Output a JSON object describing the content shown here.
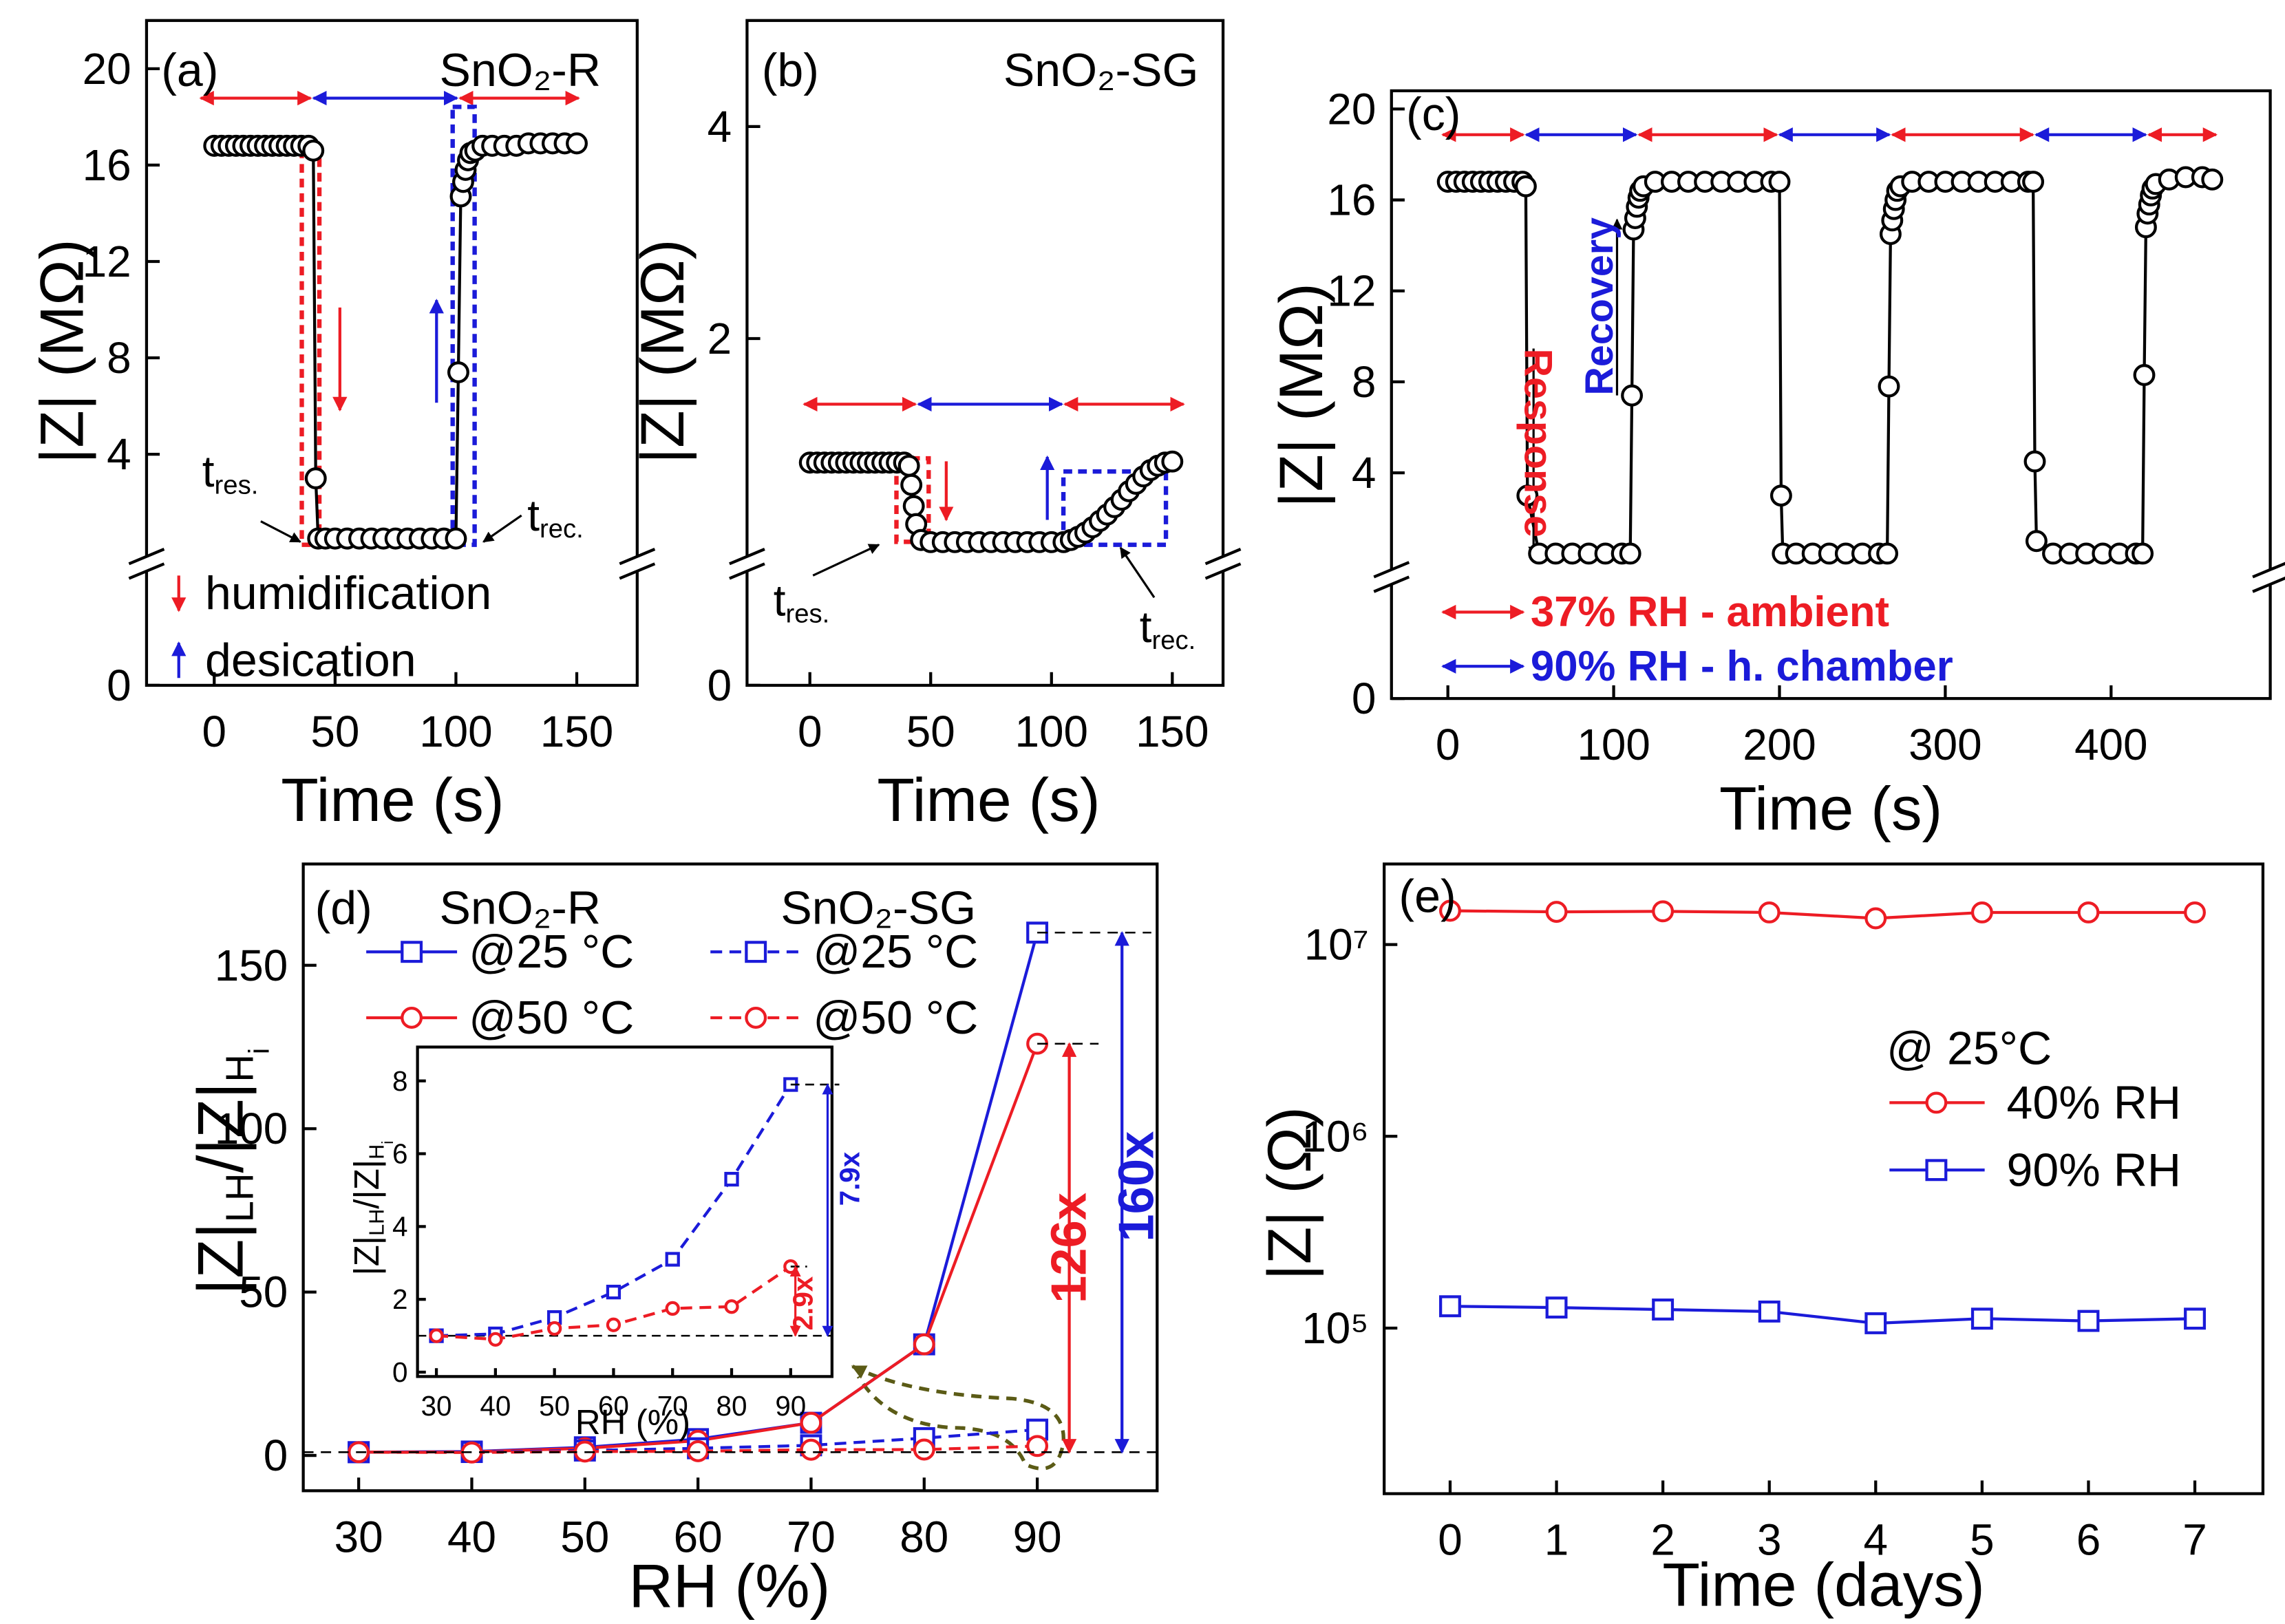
{
  "chart_data": [
    {
      "type": "line",
      "x": [
        0,
        3,
        6,
        9,
        12,
        15,
        18,
        21,
        24,
        27,
        30,
        33,
        36,
        39,
        41,
        42,
        43,
        46,
        50,
        55,
        60,
        65,
        70,
        75,
        80,
        85,
        90,
        95,
        100,
        101,
        102,
        103,
        104,
        105,
        106,
        108,
        111,
        115,
        120,
        125,
        130,
        135,
        140,
        145,
        150
      ],
      "values": [
        16.8,
        16.8,
        16.8,
        16.8,
        16.8,
        16.8,
        16.8,
        16.8,
        16.8,
        16.8,
        16.8,
        16.8,
        16.8,
        16.8,
        16.6,
        3.0,
        0.5,
        0.5,
        0.5,
        0.5,
        0.5,
        0.5,
        0.5,
        0.5,
        0.5,
        0.5,
        0.5,
        0.5,
        0.5,
        7.4,
        14.7,
        15.3,
        15.8,
        16.2,
        16.5,
        16.6,
        16.8,
        16.8,
        16.8,
        16.8,
        16.9,
        16.9,
        16.9,
        16.9,
        16.9
      ],
      "color": "#000000",
      "marker": "circle",
      "xlim": [
        -28,
        175
      ],
      "ylim": [
        0,
        22
      ],
      "axis_break": true,
      "xticks": [
        0,
        50,
        100,
        150
      ],
      "yticks": [
        0,
        4,
        8,
        12,
        16,
        20
      ],
      "xlabel": "Time (s)",
      "ylabel": "|Z| (MΩ)",
      "annotations": [
        "(a)",
        "SnO₂-R",
        {
          "text": "t",
          "sub": "res."
        },
        {
          "text": "t",
          "sub": "rec."
        }
      ],
      "legend": [
        {
          "name": "humidification",
          "color": "#ed1c24"
        },
        {
          "name": "desication",
          "color": "#1b1bd9"
        }
      ]
    },
    {
      "type": "line",
      "x": [
        0,
        3,
        6,
        9,
        12,
        15,
        18,
        21,
        24,
        27,
        30,
        33,
        36,
        39,
        41,
        42,
        43,
        44,
        46,
        50,
        55,
        60,
        65,
        70,
        75,
        80,
        85,
        90,
        95,
        100,
        105,
        108,
        111,
        114,
        117,
        120,
        123,
        126,
        129,
        132,
        135,
        138,
        141,
        144,
        147,
        150
      ],
      "values": [
        0.83,
        0.83,
        0.83,
        0.83,
        0.83,
        0.83,
        0.83,
        0.83,
        0.83,
        0.83,
        0.83,
        0.83,
        0.83,
        0.83,
        0.8,
        0.62,
        0.42,
        0.25,
        0.1,
        0.08,
        0.08,
        0.08,
        0.08,
        0.08,
        0.08,
        0.08,
        0.08,
        0.08,
        0.08,
        0.08,
        0.08,
        0.1,
        0.13,
        0.17,
        0.22,
        0.28,
        0.34,
        0.41,
        0.48,
        0.56,
        0.63,
        0.7,
        0.76,
        0.8,
        0.83,
        0.84
      ],
      "color": "#000000",
      "marker": "circle",
      "xlim": [
        -26,
        171
      ],
      "ylim": [
        0,
        5
      ],
      "axis_break": true,
      "xticks": [
        0,
        50,
        100,
        150
      ],
      "yticks": [
        0,
        2,
        4
      ],
      "xlabel": "Time (s)",
      "ylabel": "|Z| (MΩ)",
      "annotations": [
        "(b)",
        "SnO₂-SG",
        {
          "text": "t",
          "sub": "res."
        },
        {
          "text": "t",
          "sub": "rec."
        }
      ]
    },
    {
      "type": "line",
      "x": [
        0,
        5,
        10,
        15,
        20,
        25,
        30,
        35,
        40,
        45,
        47,
        48,
        55,
        65,
        75,
        85,
        95,
        105,
        110,
        111,
        112,
        113,
        114,
        115,
        116,
        118,
        125,
        135,
        145,
        155,
        165,
        175,
        185,
        195,
        200,
        201,
        202,
        210,
        220,
        230,
        240,
        250,
        260,
        265,
        266,
        267,
        268,
        269,
        270,
        271,
        273,
        280,
        290,
        300,
        310,
        320,
        330,
        340,
        350,
        353,
        354,
        355,
        365,
        375,
        385,
        395,
        405,
        415,
        419,
        420,
        421,
        422,
        423,
        424,
        425,
        427,
        435,
        445,
        455,
        461
      ],
      "values": [
        16.8,
        16.8,
        16.8,
        16.8,
        16.8,
        16.8,
        16.8,
        16.8,
        16.8,
        16.8,
        16.6,
        3.0,
        0.45,
        0.45,
        0.45,
        0.45,
        0.45,
        0.45,
        0.45,
        7.4,
        14.7,
        15.2,
        15.7,
        16.1,
        16.4,
        16.6,
        16.8,
        16.8,
        16.8,
        16.8,
        16.8,
        16.8,
        16.8,
        16.8,
        16.8,
        3.0,
        0.45,
        0.45,
        0.45,
        0.45,
        0.45,
        0.45,
        0.45,
        0.45,
        7.8,
        14.5,
        15.1,
        15.6,
        16.0,
        16.4,
        16.6,
        16.8,
        16.8,
        16.8,
        16.8,
        16.8,
        16.8,
        16.8,
        16.8,
        16.8,
        4.5,
        1.0,
        0.45,
        0.45,
        0.45,
        0.45,
        0.45,
        0.45,
        0.45,
        8.3,
        14.8,
        15.4,
        15.8,
        16.2,
        16.5,
        16.7,
        16.9,
        17.0,
        17.0,
        16.9
      ],
      "color": "#000000",
      "marker": "circle",
      "xlim": [
        -34,
        496
      ],
      "ylim": [
        0,
        20.8
      ],
      "axis_break": true,
      "xticks": [
        0,
        100,
        200,
        300,
        400
      ],
      "yticks": [
        0,
        4,
        8,
        12,
        16,
        20
      ],
      "xlabel": "Time (s)",
      "ylabel": "|Z| (MΩ)",
      "annotations": [
        "(c)",
        {
          "text": "Response",
          "color": "#ed1c24"
        },
        {
          "text": "Recovery",
          "color": "#1b1bd9"
        }
      ],
      "legend": [
        {
          "name": "37% RH - ambient",
          "color": "#ed1c24"
        },
        {
          "name": "90% RH - h. chamber",
          "color": "#1b1bd9"
        }
      ]
    },
    {
      "type": "line",
      "x": [
        30,
        40,
        50,
        60,
        70,
        80,
        90
      ],
      "xlim": [
        25.1,
        100.6
      ],
      "ylim": [
        -10.8,
        181
      ],
      "xticks": [
        30,
        40,
        50,
        60,
        70,
        80,
        90
      ],
      "yticks": [
        0,
        50,
        100,
        150
      ],
      "xlabel": "RH (%)",
      "ylabel": [
        "|Z|",
        "LH",
        "/|Z|",
        "H",
        "i"
      ],
      "legend_columns": [
        "SnO₂-R",
        "SnO₂-SG"
      ],
      "series": [
        {
          "name": "@25 °C",
          "color": "#1b1bd9",
          "marker": "square",
          "dash": false,
          "values": [
            1,
            1.2,
            2.5,
            5,
            10,
            34,
            160
          ]
        },
        {
          "name": "@50 °C",
          "color": "#ed1c24",
          "marker": "circle",
          "dash": false,
          "values": [
            1,
            1.1,
            2.2,
            4.5,
            10,
            34,
            126
          ]
        },
        {
          "name": "@25 °C",
          "color": "#1b1bd9",
          "marker": "square",
          "dash": true,
          "values": [
            1,
            1.05,
            1.5,
            2.2,
            3.1,
            5.3,
            7.9
          ]
        },
        {
          "name": "@50 °C",
          "color": "#ed1c24",
          "marker": "circle",
          "dash": true,
          "values": [
            1,
            0.9,
            1.2,
            1.3,
            1.75,
            1.8,
            2.9
          ]
        }
      ],
      "annotations": [
        "(d)",
        {
          "text": "126x",
          "color": "#ed1c24"
        },
        {
          "text": "160x",
          "color": "#1b1bd9"
        }
      ],
      "inset": {
        "xlim": [
          26.8,
          97
        ],
        "ylim": [
          -0.12,
          8.93
        ],
        "xticks": [
          30,
          40,
          50,
          60,
          70,
          80,
          90
        ],
        "yticks": [
          0,
          2,
          4,
          6,
          8
        ],
        "xlabel": "RH (%)",
        "ylabel": [
          "|Z|",
          "LH",
          "/|Z|",
          "H",
          "i"
        ],
        "annotations": [
          {
            "text": "7.9x",
            "color": "#1b1bd9"
          },
          {
            "text": "2.9x",
            "color": "#ed1c24"
          }
        ]
      }
    },
    {
      "type": "line",
      "x": [
        0,
        1,
        2,
        3,
        4,
        5,
        6,
        7
      ],
      "xlim": [
        -0.62,
        7.64
      ],
      "ylim": [
        13700,
        26300000
      ],
      "ylog": true,
      "xticks": [
        0,
        1,
        2,
        3,
        4,
        5,
        6,
        7
      ],
      "yticks": [
        {
          "value": 100000,
          "label": "10⁵"
        },
        {
          "value": 1000000,
          "label": "10⁶"
        },
        {
          "value": 10000000,
          "label": "10⁷"
        }
      ],
      "xlabel": "Time (days)",
      "ylabel": "|Z| (Ω)",
      "legend_title": "@ 25°C",
      "series": [
        {
          "name": "40% RH",
          "color": "#ed1c24",
          "marker": "circle",
          "dash": false,
          "values": [
            15000000,
            14800000,
            14900000,
            14700000,
            13700000,
            14700000,
            14700000,
            14700000
          ]
        },
        {
          "name": "90% RH",
          "color": "#1b1bd9",
          "marker": "square",
          "dash": false,
          "values": [
            130000,
            128000,
            125000,
            122000,
            106000,
            112000,
            109000,
            112000
          ]
        }
      ],
      "annotations": [
        "(e)"
      ]
    }
  ]
}
